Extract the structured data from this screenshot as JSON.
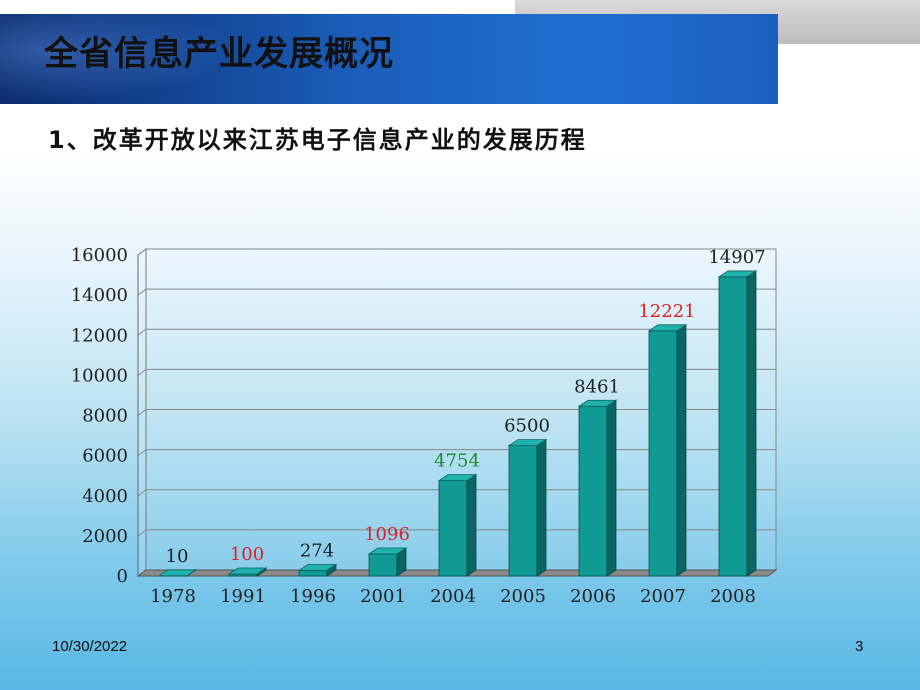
{
  "slide": {
    "title": "全省信息产业发展概况",
    "subtitle": "1、改革开放以来江苏电子信息产业的发展历程",
    "date": "10/30/2022",
    "page_number": "3"
  },
  "chart_data": {
    "type": "bar",
    "title": "",
    "xlabel": "",
    "ylabel": "",
    "ylim": [
      0,
      16000
    ],
    "yticks": [
      0,
      2000,
      4000,
      6000,
      8000,
      10000,
      12000,
      14000,
      16000
    ],
    "grid": true,
    "categories": [
      "1978",
      "1991",
      "1996",
      "2001",
      "2004",
      "2005",
      "2006",
      "2007",
      "2008"
    ],
    "values": [
      10,
      100,
      274,
      1096,
      4754,
      6500,
      8461,
      12221,
      14907
    ],
    "value_labels": [
      "10",
      "100",
      "274",
      "1096",
      "4754",
      "6500",
      "8461",
      "12221",
      "14907"
    ],
    "label_colors": [
      "#222222",
      "#e02020",
      "#222222",
      "#e02020",
      "#1f8a2a",
      "#222222",
      "#222222",
      "#e02020",
      "#222222"
    ],
    "bar_color": "#0f9a96"
  }
}
